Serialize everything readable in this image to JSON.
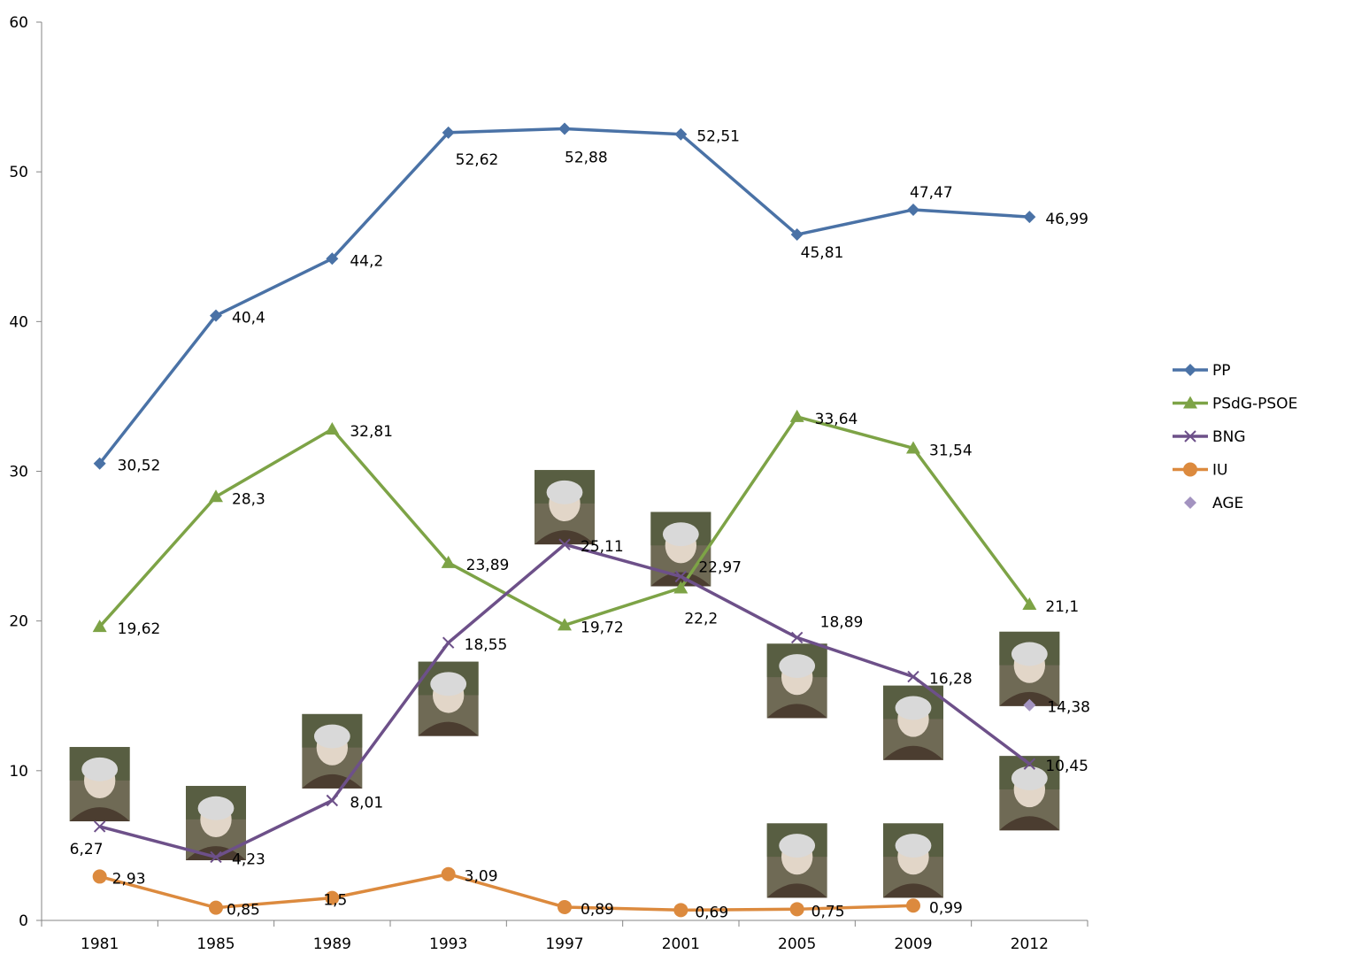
{
  "chart_data": {
    "type": "line",
    "title": "",
    "xlabel": "",
    "ylabel": "",
    "categories": [
      "1981",
      "1985",
      "1989",
      "1993",
      "1997",
      "2001",
      "2005",
      "2009",
      "2012"
    ],
    "ylim": [
      0,
      60
    ],
    "yticks": [
      "0",
      "10",
      "20",
      "30",
      "40",
      "50",
      "60"
    ],
    "grid": false,
    "legend_position": "right",
    "series": [
      {
        "name": "PP",
        "color": "#4a72a6",
        "marker": "diamond",
        "values": [
          30.52,
          40.4,
          44.2,
          52.62,
          52.88,
          52.51,
          45.81,
          47.47,
          46.99
        ],
        "labels": [
          "30,52",
          "40,4",
          "44,2",
          "52,62",
          "52,88",
          "52,51",
          "45,81",
          "47,47",
          "46,99"
        ]
      },
      {
        "name": "PSdG-PSOE",
        "color": "#7da346",
        "marker": "triangle",
        "values": [
          19.62,
          28.3,
          32.81,
          23.89,
          19.72,
          22.2,
          33.64,
          31.54,
          21.1
        ],
        "labels": [
          "19,62",
          "28,3",
          "32,81",
          "23,89",
          "19,72",
          "22,2",
          "33,64",
          "31,54",
          "21,1"
        ]
      },
      {
        "name": "BNG",
        "color": "#6d5089",
        "marker": "x",
        "values": [
          6.27,
          4.23,
          8.01,
          18.55,
          25.11,
          22.97,
          18.89,
          16.28,
          10.45
        ],
        "labels": [
          "6,27",
          "4,23",
          "8,01",
          "18,55",
          "25,11",
          "22,97",
          "18,89",
          "16,28",
          "10,45"
        ]
      },
      {
        "name": "IU",
        "color": "#dc8a3e",
        "marker": "circle",
        "values": [
          2.93,
          0.85,
          1.5,
          3.09,
          0.89,
          0.69,
          0.75,
          0.99,
          null
        ],
        "labels": [
          "2,93",
          "0,85",
          "1,5",
          "3,09",
          "0,89",
          "0,69",
          "0,75",
          "0,99",
          ""
        ]
      },
      {
        "name": "AGE",
        "color": "#a393c0",
        "marker": "diamond",
        "values": [
          null,
          null,
          null,
          null,
          null,
          null,
          null,
          null,
          14.38
        ],
        "labels": [
          "",
          "",
          "",
          "",
          "",
          "",
          "",
          "",
          "14,38"
        ]
      }
    ],
    "portraits": [
      {
        "name": "portrait-1981-bng",
        "category": "1981",
        "value": 9.1
      },
      {
        "name": "portrait-1985-bng",
        "category": "1985",
        "value": 6.5
      },
      {
        "name": "portrait-1989-bng",
        "category": "1989",
        "value": 11.3
      },
      {
        "name": "portrait-1993-bng",
        "category": "1993",
        "value": 14.8
      },
      {
        "name": "portrait-1997-bng",
        "category": "1997",
        "value": 27.6
      },
      {
        "name": "portrait-2001-bng",
        "category": "2001",
        "value": 24.8
      },
      {
        "name": "portrait-2005-bng",
        "category": "2005",
        "value": 16.0
      },
      {
        "name": "portrait-2009-bng",
        "category": "2009",
        "value": 13.2
      },
      {
        "name": "portrait-2012-age",
        "category": "2012",
        "value": 16.8
      },
      {
        "name": "portrait-2012-bng",
        "category": "2012",
        "value": 8.5
      },
      {
        "name": "portrait-2005-iu",
        "category": "2005",
        "value": 4.0
      },
      {
        "name": "portrait-2009-iu",
        "category": "2009",
        "value": 4.0
      }
    ]
  }
}
